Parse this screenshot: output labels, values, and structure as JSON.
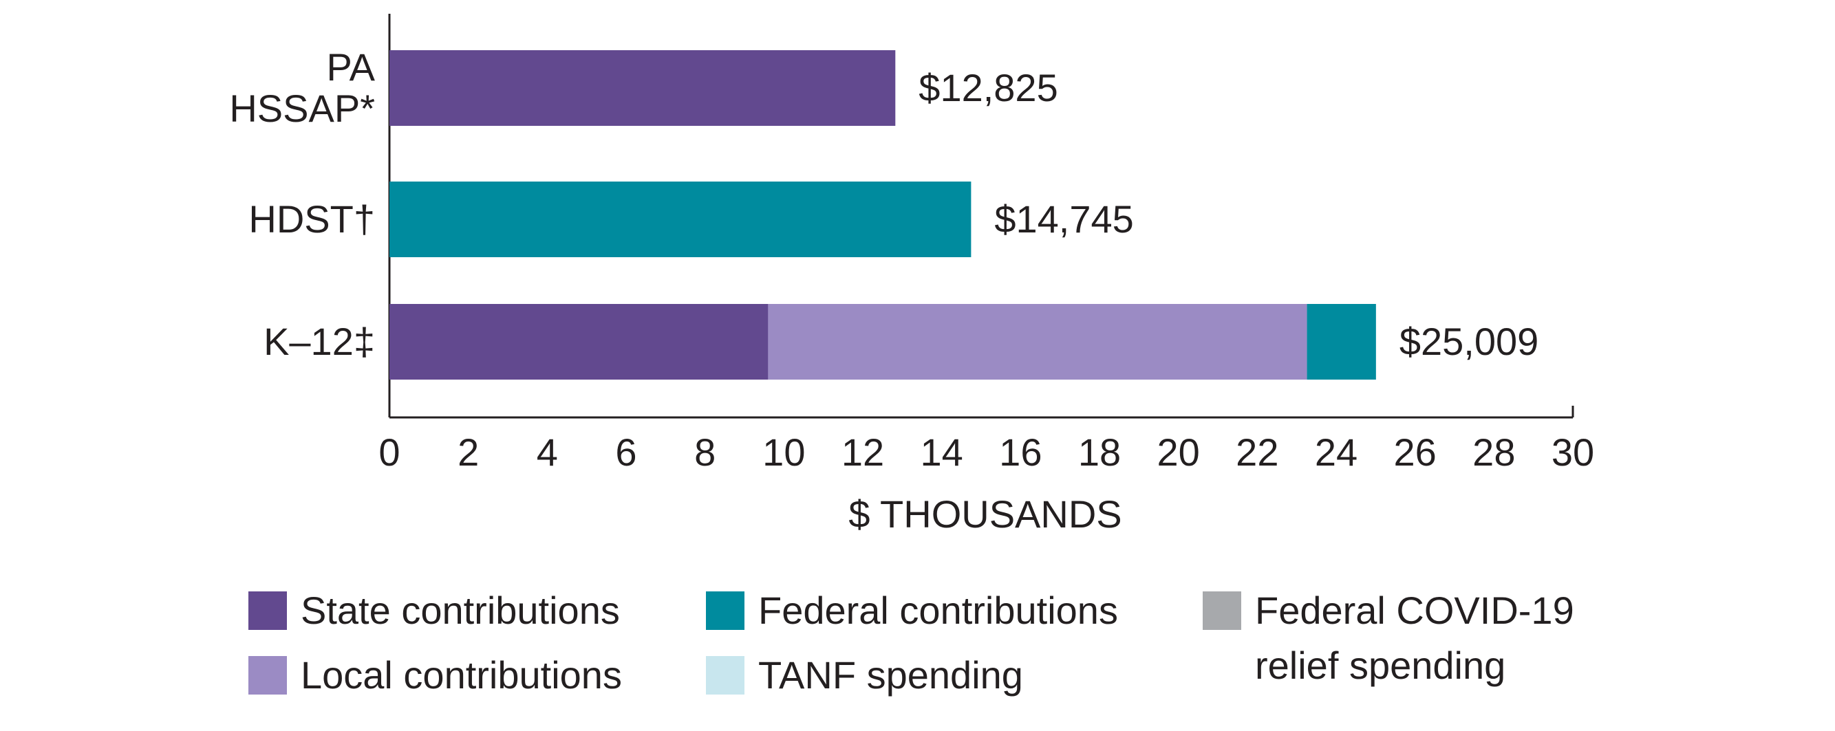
{
  "chart_data": {
    "type": "bar",
    "orientation": "horizontal",
    "stacked": true,
    "categories": [
      "PA HSSAP*",
      "HDST†",
      "K–12‡"
    ],
    "series": [
      {
        "name": "State contributions",
        "color": "#62498f",
        "values": [
          12.825,
          null,
          9.6
        ]
      },
      {
        "name": "Local contributions",
        "color": "#9b8bc4",
        "values": [
          null,
          null,
          13.66
        ]
      },
      {
        "name": "Federal contributions",
        "color": "#008b9e",
        "values": [
          null,
          14.745,
          1.749
        ]
      },
      {
        "name": "TANF spending",
        "color": "#c8e6ee",
        "values": [
          null,
          null,
          null
        ]
      },
      {
        "name": "Federal COVID-19 relief spending",
        "color": "#a7a9ac",
        "values": [
          null,
          null,
          null
        ]
      }
    ],
    "totals": [
      12.825,
      14.745,
      25.009
    ],
    "total_labels": [
      "$12,825",
      "$14,745",
      "$25,009"
    ],
    "xlabel": "$ THOUSANDS",
    "xlim": [
      0,
      30
    ],
    "xticks": [
      0,
      2,
      4,
      6,
      8,
      10,
      12,
      14,
      16,
      18,
      20,
      22,
      24,
      26,
      28,
      30
    ]
  }
}
